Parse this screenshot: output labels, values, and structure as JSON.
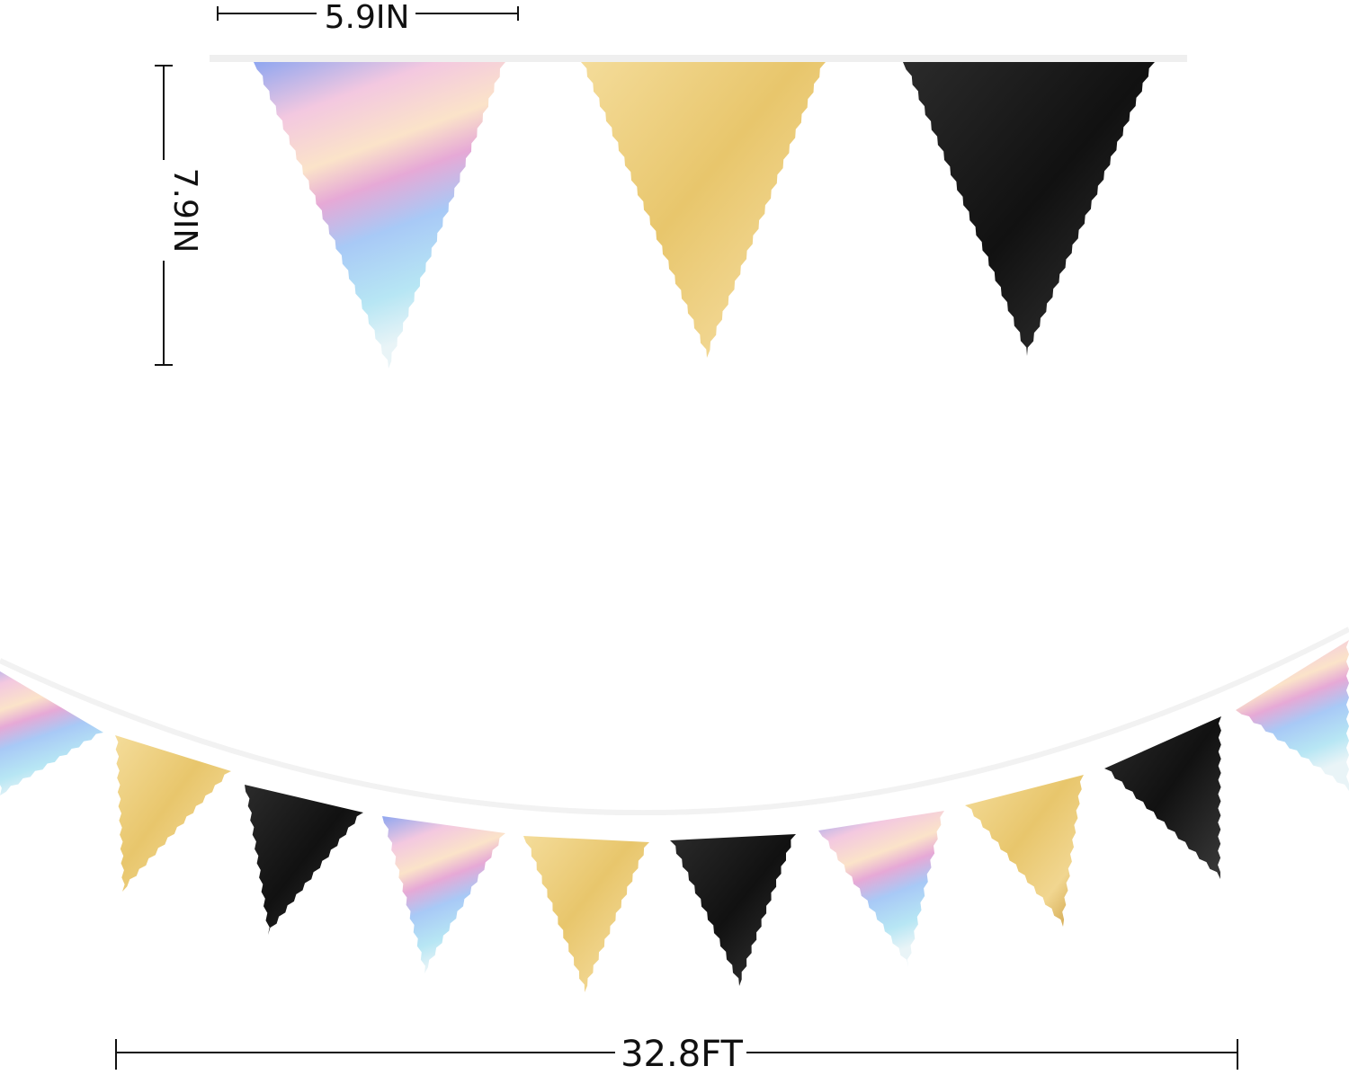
{
  "dimensions": {
    "width_label": "5.9IN",
    "height_label": "7.9IN",
    "length_label": "32.8FT"
  },
  "colors": {
    "gold": "#e6c46a",
    "black": "#141414",
    "iridescent_blue": "#9fc6ef",
    "iridescent_pink": "#f2c6dc",
    "string": "#eeeeee",
    "line": "#111111"
  },
  "top_flags": [
    "iridescent",
    "gold",
    "black"
  ],
  "garland_flags": [
    "iridescent",
    "gold",
    "black",
    "iridescent",
    "gold",
    "black",
    "iridescent",
    "gold",
    "black",
    "iridescent"
  ]
}
